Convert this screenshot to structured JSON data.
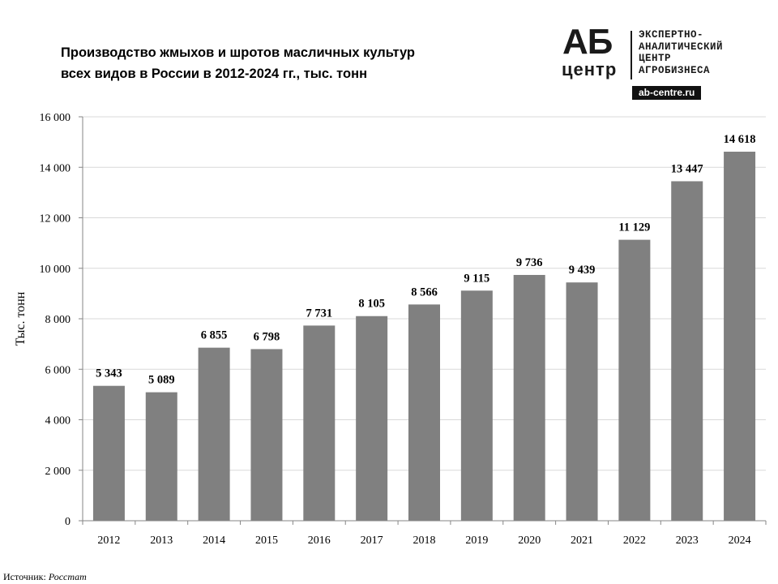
{
  "title": {
    "line1": "Производство  жмыхов  и шротов  масличных культур",
    "line2": "всех видов в России в 2012-2024 гг., тыс. тонн"
  },
  "logo": {
    "abbr_top": "АБ",
    "abbr_bottom": "центр",
    "lines": [
      "ЭКСПЕРТНО-",
      "АНАЛИТИЧЕСКИЙ",
      "ЦЕНТР",
      "АГРОБИЗНЕСА"
    ],
    "url": "ab-centre.ru"
  },
  "source": {
    "label": "Источник:",
    "value": "Росстат"
  },
  "colors": {
    "bar": "#808080",
    "axis": "#868686",
    "grid": "#d9d9d9"
  },
  "chart_data": {
    "type": "bar",
    "title": "Производство  жмыхов  и шротов  масличных культур всех видов в России в 2012-2024 гг., тыс. тонн",
    "xlabel": "",
    "ylabel": "Тыс. тонн",
    "ylim": [
      0,
      16000
    ],
    "yticks": [
      0,
      2000,
      4000,
      6000,
      8000,
      10000,
      12000,
      14000,
      16000
    ],
    "ytick_labels": [
      "0",
      "2 000",
      "4 000",
      "6 000",
      "8 000",
      "10 000",
      "12 000",
      "14 000",
      "16 000"
    ],
    "grid": true,
    "categories": [
      "2012",
      "2013",
      "2014",
      "2015",
      "2016",
      "2017",
      "2018",
      "2019",
      "2020",
      "2021",
      "2022",
      "2023",
      "2024"
    ],
    "values": [
      5343,
      5089,
      6855,
      6798,
      7731,
      8105,
      8566,
      9115,
      9736,
      9439,
      11129,
      13447,
      14618
    ],
    "value_labels": [
      "5 343",
      "5 089",
      "6 855",
      "6 798",
      "7 731",
      "8 105",
      "8 566",
      "9 115",
      "9 736",
      "9 439",
      "11 129",
      "13 447",
      "14 618"
    ]
  }
}
